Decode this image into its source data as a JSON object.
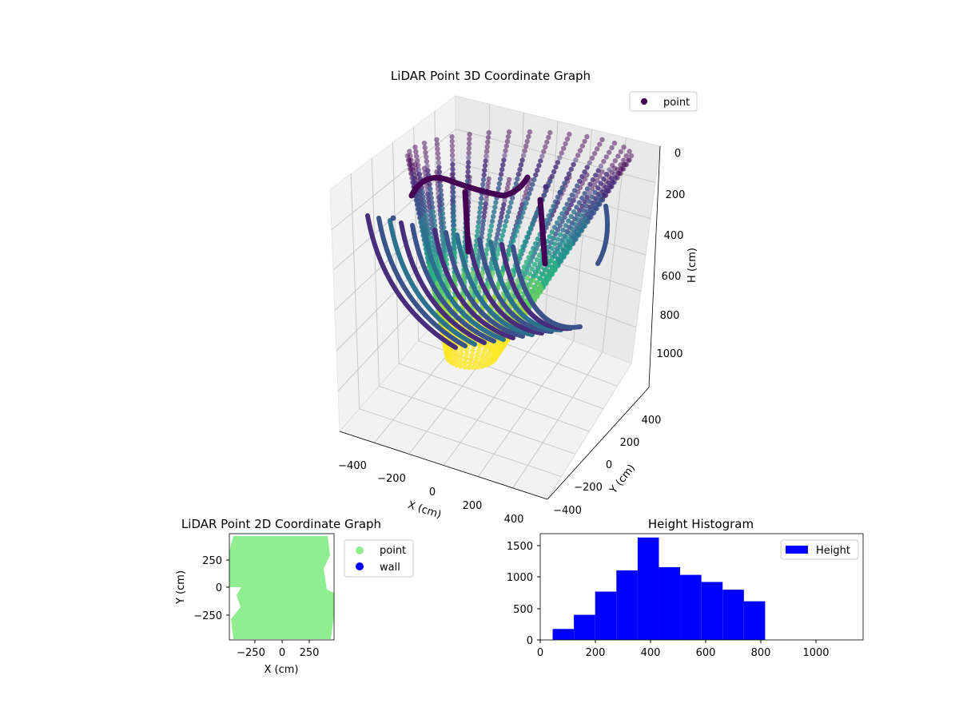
{
  "figure": {
    "plot3d": {
      "title": "LiDAR Point 3D Coordinate Graph",
      "xlabel": "X (cm)",
      "ylabel": "Y (cm)",
      "zlabel": "H (cm)",
      "x_ticks": [
        "−400",
        "−200",
        "0",
        "200",
        "400"
      ],
      "y_ticks": [
        "400",
        "200",
        "0",
        "−200",
        "−400"
      ],
      "z_ticks": [
        "0",
        "200",
        "400",
        "600",
        "800",
        "1000"
      ],
      "legend": "point",
      "colormap": "viridis"
    },
    "plot2d": {
      "title": "LiDAR Point 2D Coordinate Graph",
      "xlabel": "X (cm)",
      "ylabel": "Y (cm)",
      "x_ticks": [
        "−250",
        "0",
        "250"
      ],
      "y_ticks": [
        "250",
        "0",
        "−250"
      ],
      "legend": [
        "point",
        "wall"
      ],
      "colors": {
        "point": "#90ee90",
        "wall": "#0000ff"
      }
    },
    "histogram": {
      "title": "Height Histogram",
      "x_ticks": [
        "0",
        "200",
        "400",
        "600",
        "800",
        "1000"
      ],
      "y_ticks": [
        "0",
        "500",
        "1000",
        "1500"
      ],
      "legend": "Height",
      "color": "#0000ff"
    }
  },
  "chart_data": [
    {
      "type": "scatter",
      "title": "LiDAR Point 3D Coordinate Graph",
      "xlabel": "X (cm)",
      "ylabel": "Y (cm)",
      "zlabel": "H (cm)",
      "xlim": [
        -450,
        450
      ],
      "ylim": [
        -450,
        450
      ],
      "zlim": [
        1100,
        0
      ],
      "colormap": "viridis",
      "series": [
        {
          "name": "point"
        }
      ],
      "grid": true,
      "legend": "top-right"
    },
    {
      "type": "scatter",
      "title": "LiDAR Point 2D Coordinate Graph",
      "xlabel": "X (cm)",
      "ylabel": "Y (cm)",
      "xlim": [
        -480,
        480
      ],
      "ylim": [
        -480,
        480
      ],
      "series": [
        {
          "name": "point"
        },
        {
          "name": "wall"
        }
      ],
      "legend": "outside-right"
    },
    {
      "type": "bar",
      "title": "Height Histogram",
      "series_name": "Height",
      "bins": [
        {
          "start": 45,
          "end": 122,
          "count": 170
        },
        {
          "start": 122,
          "end": 199,
          "count": 390
        },
        {
          "start": 199,
          "end": 276,
          "count": 750
        },
        {
          "start": 276,
          "end": 353,
          "count": 1080
        },
        {
          "start": 353,
          "end": 430,
          "count": 1590
        },
        {
          "start": 430,
          "end": 507,
          "count": 1130
        },
        {
          "start": 507,
          "end": 584,
          "count": 1010
        },
        {
          "start": 584,
          "end": 661,
          "count": 900
        },
        {
          "start": 661,
          "end": 738,
          "count": 780
        },
        {
          "start": 738,
          "end": 815,
          "count": 600
        }
      ],
      "xlim": [
        0,
        1170
      ],
      "ylim": [
        0,
        1650
      ],
      "legend": "top-right"
    }
  ]
}
